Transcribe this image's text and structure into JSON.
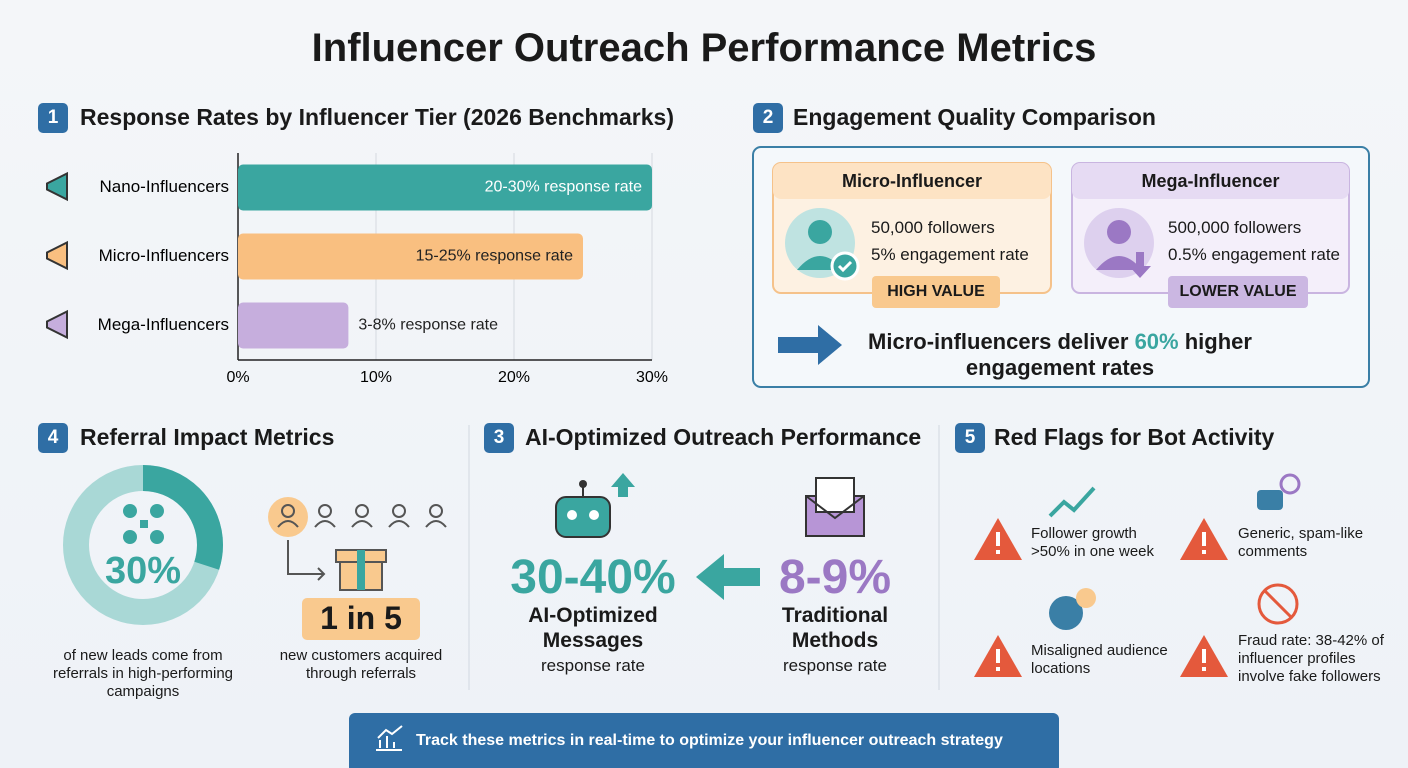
{
  "title": "Influencer Outreach Performance Metrics",
  "chart_data": {
    "type": "bar",
    "orientation": "horizontal",
    "section_number": "1",
    "title": "Response Rates by Influencer Tier (2026 Benchmarks)",
    "categories": [
      "Nano-Influencers",
      "Micro-Influencers",
      "Mega-Influencers"
    ],
    "values": [
      30,
      25,
      8
    ],
    "value_labels": [
      "20-30% response rate",
      "15-25% response rate",
      "3-8% response rate"
    ],
    "colors": [
      "#3aa6a0",
      "#f9bf80",
      "#c6aedd"
    ],
    "xlim": [
      0,
      30
    ],
    "xticks": [
      {
        "value": 0,
        "label": "0%"
      },
      {
        "value": 10,
        "label": "10%"
      },
      {
        "value": 20,
        "label": "20%"
      },
      {
        "value": 30,
        "label": "30%"
      }
    ],
    "grid": true
  },
  "engagement": {
    "number": "2",
    "title": "Engagement Quality Comparison",
    "cards": [
      {
        "name": "Micro-Influencer",
        "followers": "50,000 followers",
        "engagement": "5% engagement rate",
        "badge": "HIGH VALUE"
      },
      {
        "name": "Mega-Influencer",
        "followers": "500,000 followers",
        "engagement": "0.5% engagement rate",
        "badge": "LOWER VALUE"
      }
    ],
    "summary": {
      "before": "Micro-influencers deliver",
      "highlight": "60%",
      "after": "higher engagement rates"
    }
  },
  "referral": {
    "number": "4",
    "title": "Referral Impact Metrics",
    "donut": {
      "value": 30,
      "label": "30%"
    },
    "donut_caption": "of new leads come from referrals in high-performing campaigns",
    "ratio": "1 in 5",
    "ratio_caption": "new customers acquired through referrals"
  },
  "ai": {
    "number": "3",
    "title": "AI-Optimized Outreach Performance",
    "optimized": {
      "value": "30-40%",
      "label": "AI-Optimized Messages",
      "sub": "response rate"
    },
    "traditional": {
      "value": "8-9%",
      "label": "Traditional Methods",
      "sub": "response rate"
    }
  },
  "red_flags": {
    "number": "5",
    "title": "Red Flags for Bot Activity",
    "items": [
      "Follower growth >50% in one week",
      "Generic, spam-like comments",
      "Misaligned audience locations",
      "Fraud rate: 38-42% of influencer profiles involve fake followers"
    ]
  },
  "footer": "Track these metrics in real-time to optimize your influencer outreach strategy"
}
